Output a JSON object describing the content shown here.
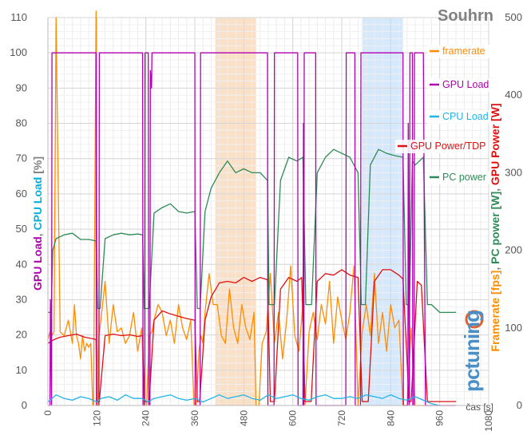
{
  "chart_data": {
    "type": "line",
    "title": "Souhrn",
    "x_unit_label": "čas [s]",
    "xlim": [
      0,
      1080
    ],
    "x_ticks": [
      "0",
      "120",
      "240",
      "360",
      "480",
      "600",
      "720",
      "840",
      "960",
      "1080"
    ],
    "left_axis": {
      "label_parts": [
        {
          "text": "GPU Load",
          "color": "#B000B0"
        },
        {
          "text": ", ",
          "color": "#808080"
        },
        {
          "text": "CPU Load",
          "color": "#00B0E0"
        },
        {
          "text": " [%]",
          "color": "#808080"
        }
      ],
      "ylim": [
        0,
        110
      ],
      "ticks": [
        "0",
        "10",
        "20",
        "30",
        "40",
        "50",
        "60",
        "70",
        "80",
        "90",
        "100",
        "110"
      ]
    },
    "right_axis": {
      "label_parts": [
        {
          "text": "Framerate [fps]",
          "color": "#FF8C00"
        },
        {
          "text": ", ",
          "color": "#808080"
        },
        {
          "text": "PC power [W]",
          "color": "#2E8B57"
        },
        {
          "text": ", ",
          "color": "#808080"
        },
        {
          "text": "GPU Power [W]",
          "color": "#E01010"
        }
      ],
      "ylim": [
        0,
        500
      ],
      "ticks": [
        "0",
        "100",
        "200",
        "300",
        "400",
        "500"
      ]
    },
    "grid": true,
    "highlight_bands": [
      {
        "x": [
          410,
          510
        ],
        "color": "#FBE0C8"
      },
      {
        "x": [
          770,
          870
        ],
        "color": "#D6E8FB"
      }
    ],
    "series": [
      {
        "name": "framerate",
        "color": "#FF8C00",
        "axis": "right",
        "x": [
          0,
          5,
          10,
          15,
          20,
          30,
          40,
          50,
          60,
          65,
          70,
          75,
          80,
          85,
          90,
          95,
          100,
          105,
          110,
          112,
          118,
          122,
          125,
          130,
          140,
          150,
          160,
          170,
          180,
          190,
          200,
          210,
          220,
          230,
          236,
          242,
          248,
          255,
          260,
          270,
          280,
          290,
          300,
          310,
          320,
          330,
          340,
          350,
          358,
          364,
          370,
          375,
          380,
          385,
          395,
          405,
          415,
          425,
          435,
          445,
          455,
          465,
          475,
          485,
          495,
          505,
          510,
          517,
          525,
          535,
          545,
          555,
          565,
          575,
          585,
          595,
          605,
          615,
          625,
          630,
          640,
          650,
          660,
          670,
          680,
          690,
          700,
          710,
          720,
          730,
          740,
          750,
          760,
          770,
          780,
          790,
          800,
          810,
          820,
          830,
          840,
          850,
          860,
          870,
          880,
          890,
          900,
          910,
          915,
          925
        ],
        "values": [
          85,
          95,
          90,
          95,
          500,
          95,
          90,
          110,
          80,
          130,
          90,
          80,
          60,
          90,
          70,
          80,
          75,
          80,
          0,
          0,
          520,
          0,
          90,
          110,
          160,
          80,
          130,
          95,
          100,
          80,
          90,
          120,
          70,
          100,
          0,
          0,
          90,
          95,
          110,
          130,
          120,
          90,
          110,
          80,
          130,
          100,
          85,
          110,
          0,
          0,
          70,
          90,
          80,
          120,
          170,
          130,
          130,
          90,
          80,
          150,
          100,
          80,
          130,
          100,
          85,
          120,
          0,
          0,
          80,
          95,
          170,
          80,
          120,
          60,
          110,
          180,
          90,
          70,
          130,
          0,
          95,
          120,
          85,
          130,
          105,
          160,
          80,
          140,
          110,
          85,
          120,
          180,
          0,
          95,
          130,
          90,
          170,
          80,
          120,
          70,
          130,
          100,
          110,
          0,
          0,
          100,
          0,
          0,
          0,
          0
        ]
      },
      {
        "name": "GPU Load",
        "color": "#B000B0",
        "axis": "left",
        "x": [
          0,
          5,
          6,
          9,
          10,
          14,
          15,
          118,
          119,
          125,
          126,
          232,
          233,
          237,
          238,
          246,
          247,
          250,
          251,
          254,
          255,
          360,
          361,
          373,
          374,
          470,
          471,
          538,
          539,
          554,
          555,
          612,
          613,
          625,
          626,
          627,
          628,
          656,
          657,
          730,
          731,
          752,
          753,
          766,
          767,
          870,
          871,
          882,
          883,
          886,
          887,
          893,
          894,
          897,
          898,
          920,
          925,
          1000
        ],
        "values": [
          0,
          0,
          30,
          0,
          100,
          100,
          100,
          100,
          0,
          0,
          100,
          100,
          0,
          0,
          100,
          100,
          0,
          0,
          95,
          90,
          100,
          100,
          0,
          0,
          100,
          100,
          100,
          100,
          0,
          0,
          100,
          100,
          0,
          0,
          80,
          0,
          100,
          100,
          0,
          0,
          100,
          100,
          0,
          0,
          100,
          100,
          0,
          0,
          80,
          0,
          100,
          100,
          0,
          0,
          100,
          100,
          0,
          0
        ]
      },
      {
        "name": "CPU Load",
        "color": "#1EB4E8",
        "axis": "left",
        "x": [
          0,
          10,
          20,
          40,
          60,
          80,
          100,
          120,
          130,
          150,
          170,
          190,
          210,
          230,
          245,
          260,
          280,
          300,
          320,
          340,
          360,
          380,
          400,
          420,
          440,
          460,
          480,
          500,
          520,
          540,
          560,
          580,
          600,
          620,
          640,
          660,
          680,
          700,
          720,
          740,
          760,
          780,
          800,
          820,
          840,
          860,
          880,
          900,
          920,
          940,
          960
        ],
        "values": [
          1,
          2,
          3,
          2,
          1.5,
          2.5,
          2,
          1,
          2,
          2.5,
          1.5,
          3,
          2,
          2,
          1,
          2,
          2.5,
          3,
          2,
          1.5,
          2,
          1,
          2,
          3,
          2,
          2.5,
          3,
          2,
          1.5,
          3,
          2,
          2.5,
          3,
          2,
          1.5,
          2.5,
          3,
          2,
          2,
          2.5,
          2,
          3,
          2.5,
          2,
          3,
          2,
          1.5,
          2.5,
          1.5,
          0.5,
          0
        ]
      },
      {
        "name": "GPU Power/TDP",
        "color": "#E01010",
        "axis": "right",
        "x": [
          0,
          15,
          30,
          50,
          70,
          90,
          110,
          118,
          120,
          126,
          140,
          160,
          180,
          200,
          220,
          232,
          236,
          248,
          260,
          280,
          300,
          320,
          340,
          360,
          366,
          372,
          385,
          400,
          420,
          440,
          460,
          480,
          500,
          520,
          538,
          545,
          555,
          570,
          590,
          610,
          622,
          630,
          645,
          660,
          680,
          700,
          720,
          740,
          760,
          770,
          785,
          800,
          820,
          840,
          860,
          870,
          885,
          890,
          905,
          915,
          930,
          960,
          1000
        ],
        "values": [
          80,
          85,
          88,
          90,
          92,
          88,
          86,
          85,
          5,
          5,
          90,
          92,
          90,
          91,
          89,
          90,
          5,
          5,
          110,
          122,
          118,
          115,
          112,
          110,
          5,
          5,
          110,
          140,
          158,
          160,
          158,
          165,
          160,
          165,
          162,
          5,
          5,
          150,
          165,
          160,
          165,
          5,
          5,
          160,
          170,
          168,
          175,
          168,
          165,
          5,
          5,
          160,
          175,
          175,
          168,
          163,
          5,
          5,
          160,
          155,
          5,
          5,
          5
        ]
      },
      {
        "name": "PC power",
        "color": "#2E8B57",
        "axis": "right",
        "x": [
          0,
          8,
          12,
          20,
          40,
          60,
          80,
          100,
          118,
          122,
          128,
          140,
          160,
          180,
          200,
          220,
          232,
          236,
          248,
          260,
          280,
          300,
          320,
          340,
          360,
          366,
          373,
          385,
          400,
          420,
          440,
          460,
          480,
          500,
          520,
          538,
          542,
          555,
          570,
          590,
          610,
          625,
          632,
          646,
          660,
          680,
          700,
          720,
          740,
          760,
          768,
          778,
          790,
          810,
          830,
          850,
          870,
          878,
          886,
          893,
          900,
          920,
          930,
          940,
          960,
          990,
          1000
        ],
        "values": [
          120,
          120,
          200,
          215,
          220,
          222,
          214,
          214,
          212,
          125,
          125,
          215,
          220,
          222,
          220,
          221,
          220,
          125,
          125,
          248,
          255,
          260,
          250,
          248,
          250,
          125,
          125,
          250,
          280,
          300,
          315,
          300,
          305,
          300,
          300,
          290,
          130,
          130,
          290,
          320,
          315,
          320,
          130,
          130,
          300,
          320,
          330,
          325,
          320,
          300,
          130,
          130,
          310,
          330,
          325,
          322,
          320,
          130,
          130,
          315,
          310,
          320,
          130,
          130,
          120,
          120,
          120
        ]
      }
    ]
  }
}
